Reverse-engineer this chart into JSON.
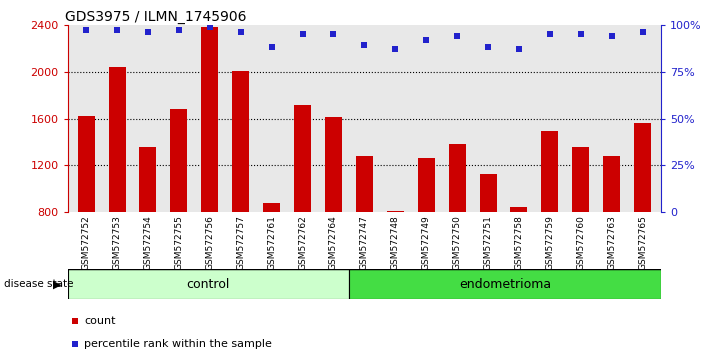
{
  "title": "GDS3975 / ILMN_1745906",
  "samples": [
    "GSM572752",
    "GSM572753",
    "GSM572754",
    "GSM572755",
    "GSM572756",
    "GSM572757",
    "GSM572761",
    "GSM572762",
    "GSM572764",
    "GSM572747",
    "GSM572748",
    "GSM572749",
    "GSM572750",
    "GSM572751",
    "GSM572758",
    "GSM572759",
    "GSM572760",
    "GSM572763",
    "GSM572765"
  ],
  "counts": [
    1620,
    2040,
    1360,
    1680,
    2380,
    2010,
    880,
    1720,
    1615,
    1280,
    810,
    1265,
    1380,
    1130,
    845,
    1490,
    1360,
    1280,
    1560
  ],
  "percentiles": [
    97,
    97,
    96,
    97,
    99,
    96,
    88,
    95,
    95,
    89,
    87,
    92,
    94,
    88,
    87,
    95,
    95,
    94,
    96
  ],
  "control_count": 9,
  "endometrioma_count": 10,
  "ylim_left": [
    800,
    2400
  ],
  "ylim_right": [
    0,
    100
  ],
  "yticks_left": [
    800,
    1200,
    1600,
    2000,
    2400
  ],
  "yticks_right": [
    0,
    25,
    50,
    75,
    100
  ],
  "bar_color": "#cc0000",
  "dot_color": "#2222cc",
  "control_bg": "#ccffcc",
  "endometrioma_bg": "#44dd44",
  "left_tick_color": "#cc0000",
  "right_tick_color": "#2222cc",
  "grid_color": "#000000",
  "plot_bg": "#e8e8e8",
  "xtick_bg": "#cccccc"
}
